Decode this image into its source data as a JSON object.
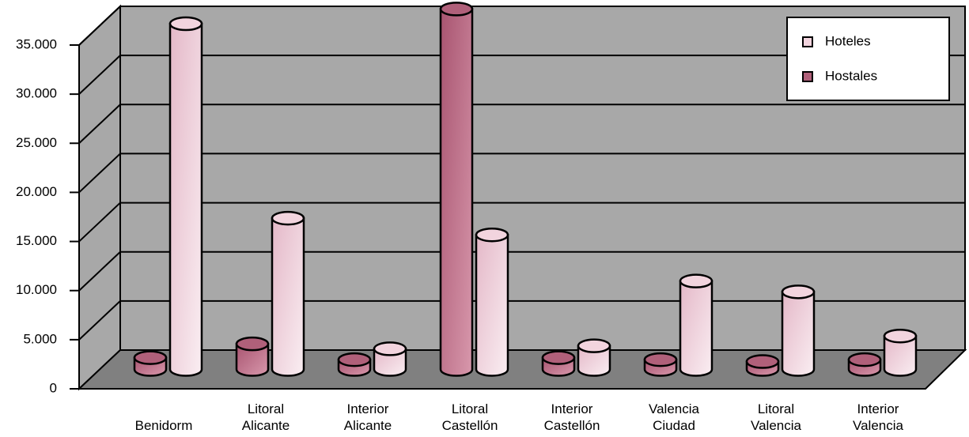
{
  "chart_data": {
    "type": "bar3d",
    "categories": [
      "Benidorm",
      "Litoral Alicante",
      "Interior Alicante",
      "Litoral Castellón",
      "Interior Castellón",
      "Valencia Ciudad",
      "Litoral Valencia",
      "Interior Valencia"
    ],
    "series": [
      {
        "name": "Hoteles",
        "color": "#f2d4de",
        "values": [
          35200,
          15400,
          2100,
          13700,
          2400,
          9000,
          7900,
          3400
        ]
      },
      {
        "name": "Hostales",
        "color": "#b0607a",
        "values": [
          1200,
          2600,
          1000,
          36700,
          1200,
          1000,
          800,
          1000
        ]
      }
    ],
    "ylim": [
      0,
      35000
    ],
    "yticks": [
      0,
      {
        "value": 5000,
        "label": "5.000"
      },
      {
        "value": 10000,
        "label": "10.000"
      },
      {
        "value": 15000,
        "label": "15.000"
      },
      {
        "value": 20000,
        "label": "20.000"
      },
      {
        "value": 25000,
        "label": "25.000"
      },
      {
        "value": 30000,
        "label": "30.000"
      },
      {
        "value": 35000,
        "label": "35.000"
      }
    ],
    "grid": true,
    "legend": "upper right"
  }
}
